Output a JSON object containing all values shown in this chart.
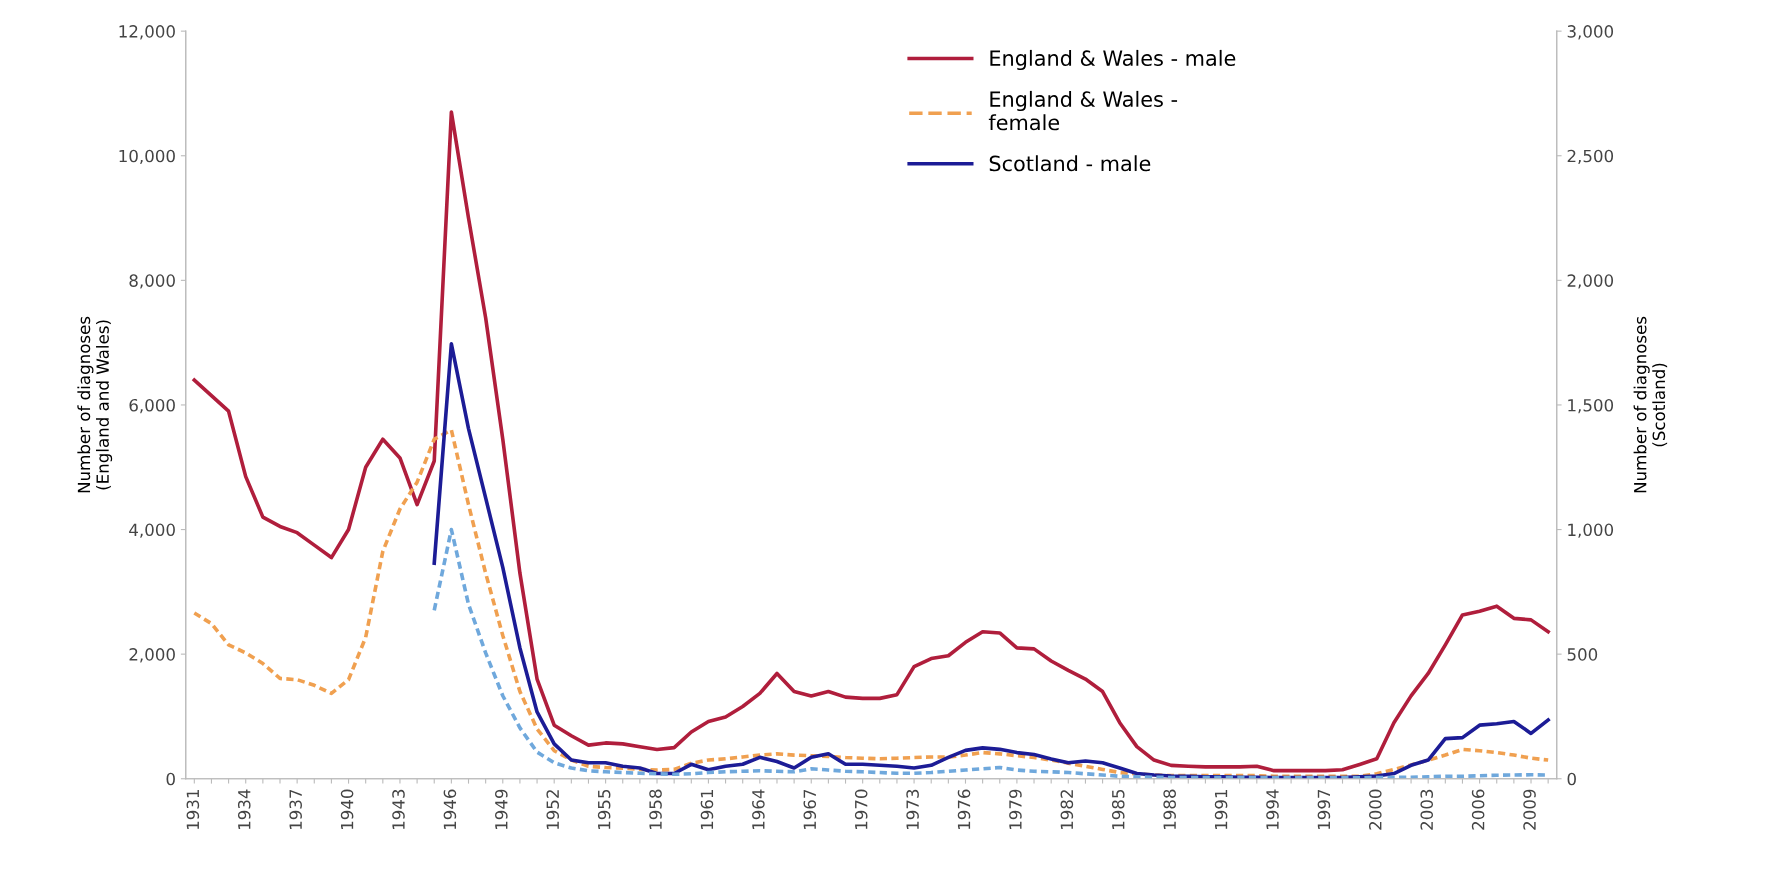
{
  "chart_data": {
    "type": "line",
    "ylabel": "Number of diagnoses\n(England and Wales)",
    "y2label": "Number of diagnoses\n(Scotland)",
    "categories": [
      "1931",
      null,
      null,
      "1934",
      null,
      null,
      "1937",
      null,
      null,
      "1940",
      null,
      null,
      "1943",
      null,
      null,
      "1946",
      null,
      null,
      "1949",
      null,
      null,
      "1952",
      null,
      null,
      "1955",
      null,
      null,
      "1958",
      null,
      null,
      "1961",
      null,
      null,
      "1964",
      null,
      null,
      "1967",
      null,
      null,
      "1970",
      null,
      null,
      "1973",
      null,
      null,
      "1976",
      null,
      null,
      "1979",
      null,
      null,
      "1982",
      null,
      null,
      "1985",
      null,
      null,
      "1988",
      null,
      null,
      "1991",
      null,
      null,
      "1994",
      null,
      null,
      "1997",
      null,
      null,
      "2000",
      null,
      null,
      "2003",
      null,
      null,
      "2006",
      null,
      null,
      "2009",
      null
    ],
    "series": [
      {
        "name": "England & Wales - male",
        "color": "#b01e3c",
        "line_style": "solid",
        "values": [
          6400,
          6150,
          5900,
          4850,
          4200,
          4050,
          3950,
          3750,
          3550,
          4000,
          5000,
          5450,
          5150,
          4400,
          5100,
          10700,
          9000,
          7400,
          5450,
          3300,
          1600,
          860,
          690,
          540,
          575,
          560,
          515,
          470,
          500,
          750,
          920,
          990,
          1160,
          1370,
          1690,
          1400,
          1330,
          1400,
          1310,
          1290,
          1290,
          1350,
          1800,
          1930,
          1975,
          2190,
          2360,
          2340,
          2100,
          2085,
          1890,
          1740,
          1600,
          1400,
          900,
          515,
          300,
          215,
          200,
          190,
          190,
          190,
          200,
          130,
          130,
          130,
          130,
          145,
          230,
          320,
          900,
          1330,
          1690,
          2150,
          2630,
          2690,
          2770,
          2575,
          2550,
          2360
        ]
      },
      {
        "name": "England & Wales -\nfemale",
        "color": "#f0a050",
        "line_style": "dashed",
        "values": [
          2660,
          2490,
          2150,
          2020,
          1850,
          1610,
          1590,
          1500,
          1370,
          1590,
          2270,
          3650,
          4330,
          4760,
          5450,
          5600,
          4400,
          3300,
          2300,
          1400,
          800,
          450,
          300,
          200,
          180,
          170,
          150,
          140,
          150,
          250,
          300,
          320,
          350,
          380,
          400,
          380,
          370,
          360,
          340,
          330,
          320,
          330,
          340,
          350,
          350,
          380,
          420,
          400,
          370,
          340,
          300,
          250,
          200,
          150,
          100,
          80,
          60,
          50,
          50,
          50,
          50,
          50,
          50,
          40,
          40,
          40,
          40,
          40,
          40,
          80,
          150,
          220,
          300,
          380,
          470,
          450,
          420,
          380,
          330,
          300
        ]
      },
      {
        "name": "Scotland - male",
        "color": "#1c1c96",
        "line_style": "solid",
        "axis": "y2",
        "values": [
          null,
          null,
          null,
          null,
          null,
          null,
          null,
          null,
          null,
          null,
          null,
          null,
          null,
          null,
          865,
          1745,
          1405,
          1127,
          848,
          525,
          268,
          140,
          75,
          64,
          64,
          50,
          43,
          21,
          21,
          58,
          36,
          50,
          58,
          86,
          69,
          43,
          86,
          100,
          58,
          58,
          54,
          50,
          43,
          54,
          86,
          114,
          124,
          118,
          105,
          97,
          79,
          64,
          71,
          64,
          43,
          21,
          15,
          11,
          10,
          8,
          8,
          6,
          6,
          5,
          5,
          5,
          5,
          5,
          8,
          11,
          21,
          54,
          75,
          161,
          165,
          215,
          221,
          230,
          182,
          236
        ]
      },
      {
        "color": "#6fa8dc",
        "line_style": "dashed",
        "axis": "y2",
        "values": [
          null,
          null,
          null,
          null,
          null,
          null,
          null,
          null,
          null,
          null,
          null,
          null,
          null,
          null,
          676,
          1000,
          700,
          505,
          333,
          204,
          107,
          64,
          43,
          32,
          28,
          25,
          22,
          20,
          18,
          20,
          25,
          28,
          30,
          32,
          30,
          28,
          40,
          35,
          30,
          28,
          25,
          22,
          22,
          25,
          30,
          35,
          40,
          45,
          35,
          30,
          28,
          25,
          20,
          15,
          10,
          8,
          6,
          5,
          5,
          5,
          5,
          5,
          4,
          4,
          4,
          4,
          4,
          4,
          4,
          5,
          5,
          6,
          8,
          10,
          10,
          12,
          14,
          15,
          16,
          15
        ]
      }
    ],
    "ylim": [
      0,
      12000
    ],
    "yticks": [
      0,
      {
        "value": 2000,
        "label": "2,000"
      },
      {
        "value": 4000,
        "label": "4,000"
      },
      {
        "value": 6000,
        "label": "6,000"
      },
      {
        "value": 8000,
        "label": "8,000"
      },
      {
        "value": 10000,
        "label": "10,000"
      },
      {
        "value": 12000,
        "label": "12,000"
      }
    ],
    "y2lim": [
      0,
      3000
    ],
    "y2ticks": [
      0,
      500,
      {
        "value": 1000,
        "label": "1,000"
      },
      {
        "value": 1500,
        "label": "1,500"
      },
      {
        "value": 2000,
        "label": "2,000"
      },
      {
        "value": 2500,
        "label": "2,500"
      },
      {
        "value": 3000,
        "label": "3,000"
      }
    ],
    "grid": false,
    "legend": "top right",
    "marker": "none"
  }
}
